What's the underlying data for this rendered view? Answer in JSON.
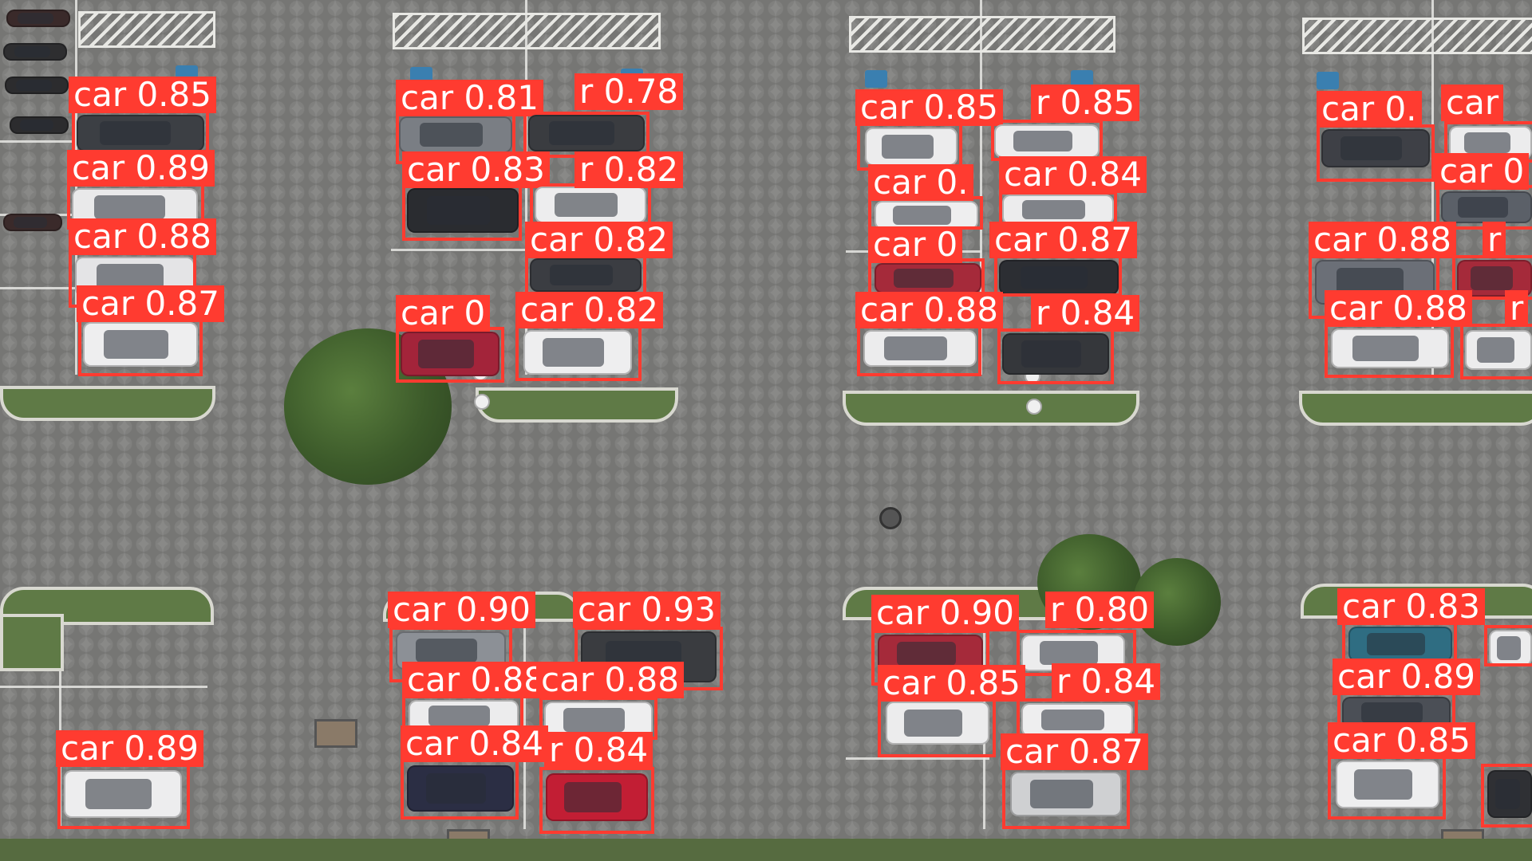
{
  "detections": [
    {
      "label": "car 0.85"
    },
    {
      "label": "car 0.89"
    },
    {
      "label": "car 0.88"
    },
    {
      "label": "car 0.87"
    },
    {
      "label": "car 0.81"
    },
    {
      "label": "r 0.78"
    },
    {
      "label": "car 0.83"
    },
    {
      "label": "r 0.82"
    },
    {
      "label": "car 0.82"
    },
    {
      "label": "car 0"
    },
    {
      "label": "car 0.82"
    },
    {
      "label": "car 0.85"
    },
    {
      "label": "r 0.85"
    },
    {
      "label": "car 0."
    },
    {
      "label": "car 0.84"
    },
    {
      "label": "car 0"
    },
    {
      "label": "car 0.87"
    },
    {
      "label": "car 0.88"
    },
    {
      "label": "r 0.84"
    },
    {
      "label": "car 0."
    },
    {
      "label": "car"
    },
    {
      "label": "car 0"
    },
    {
      "label": "car 0.88"
    },
    {
      "label": "r"
    },
    {
      "label": "car 0.88"
    },
    {
      "label": "r"
    },
    {
      "label": "car 0.90"
    },
    {
      "label": "car 0.93"
    },
    {
      "label": "car 0.88"
    },
    {
      "label": "car 0.88"
    },
    {
      "label": "car 0.84"
    },
    {
      "label": "r 0.84"
    },
    {
      "label": "car 0.89"
    },
    {
      "label": "car 0.90"
    },
    {
      "label": "r 0.80"
    },
    {
      "label": "car 0.85"
    },
    {
      "label": "r 0.84"
    },
    {
      "label": "car 0.87"
    },
    {
      "label": "car 0.83"
    },
    {
      "label": "car 0.89"
    },
    {
      "label": "car 0.85"
    }
  ]
}
